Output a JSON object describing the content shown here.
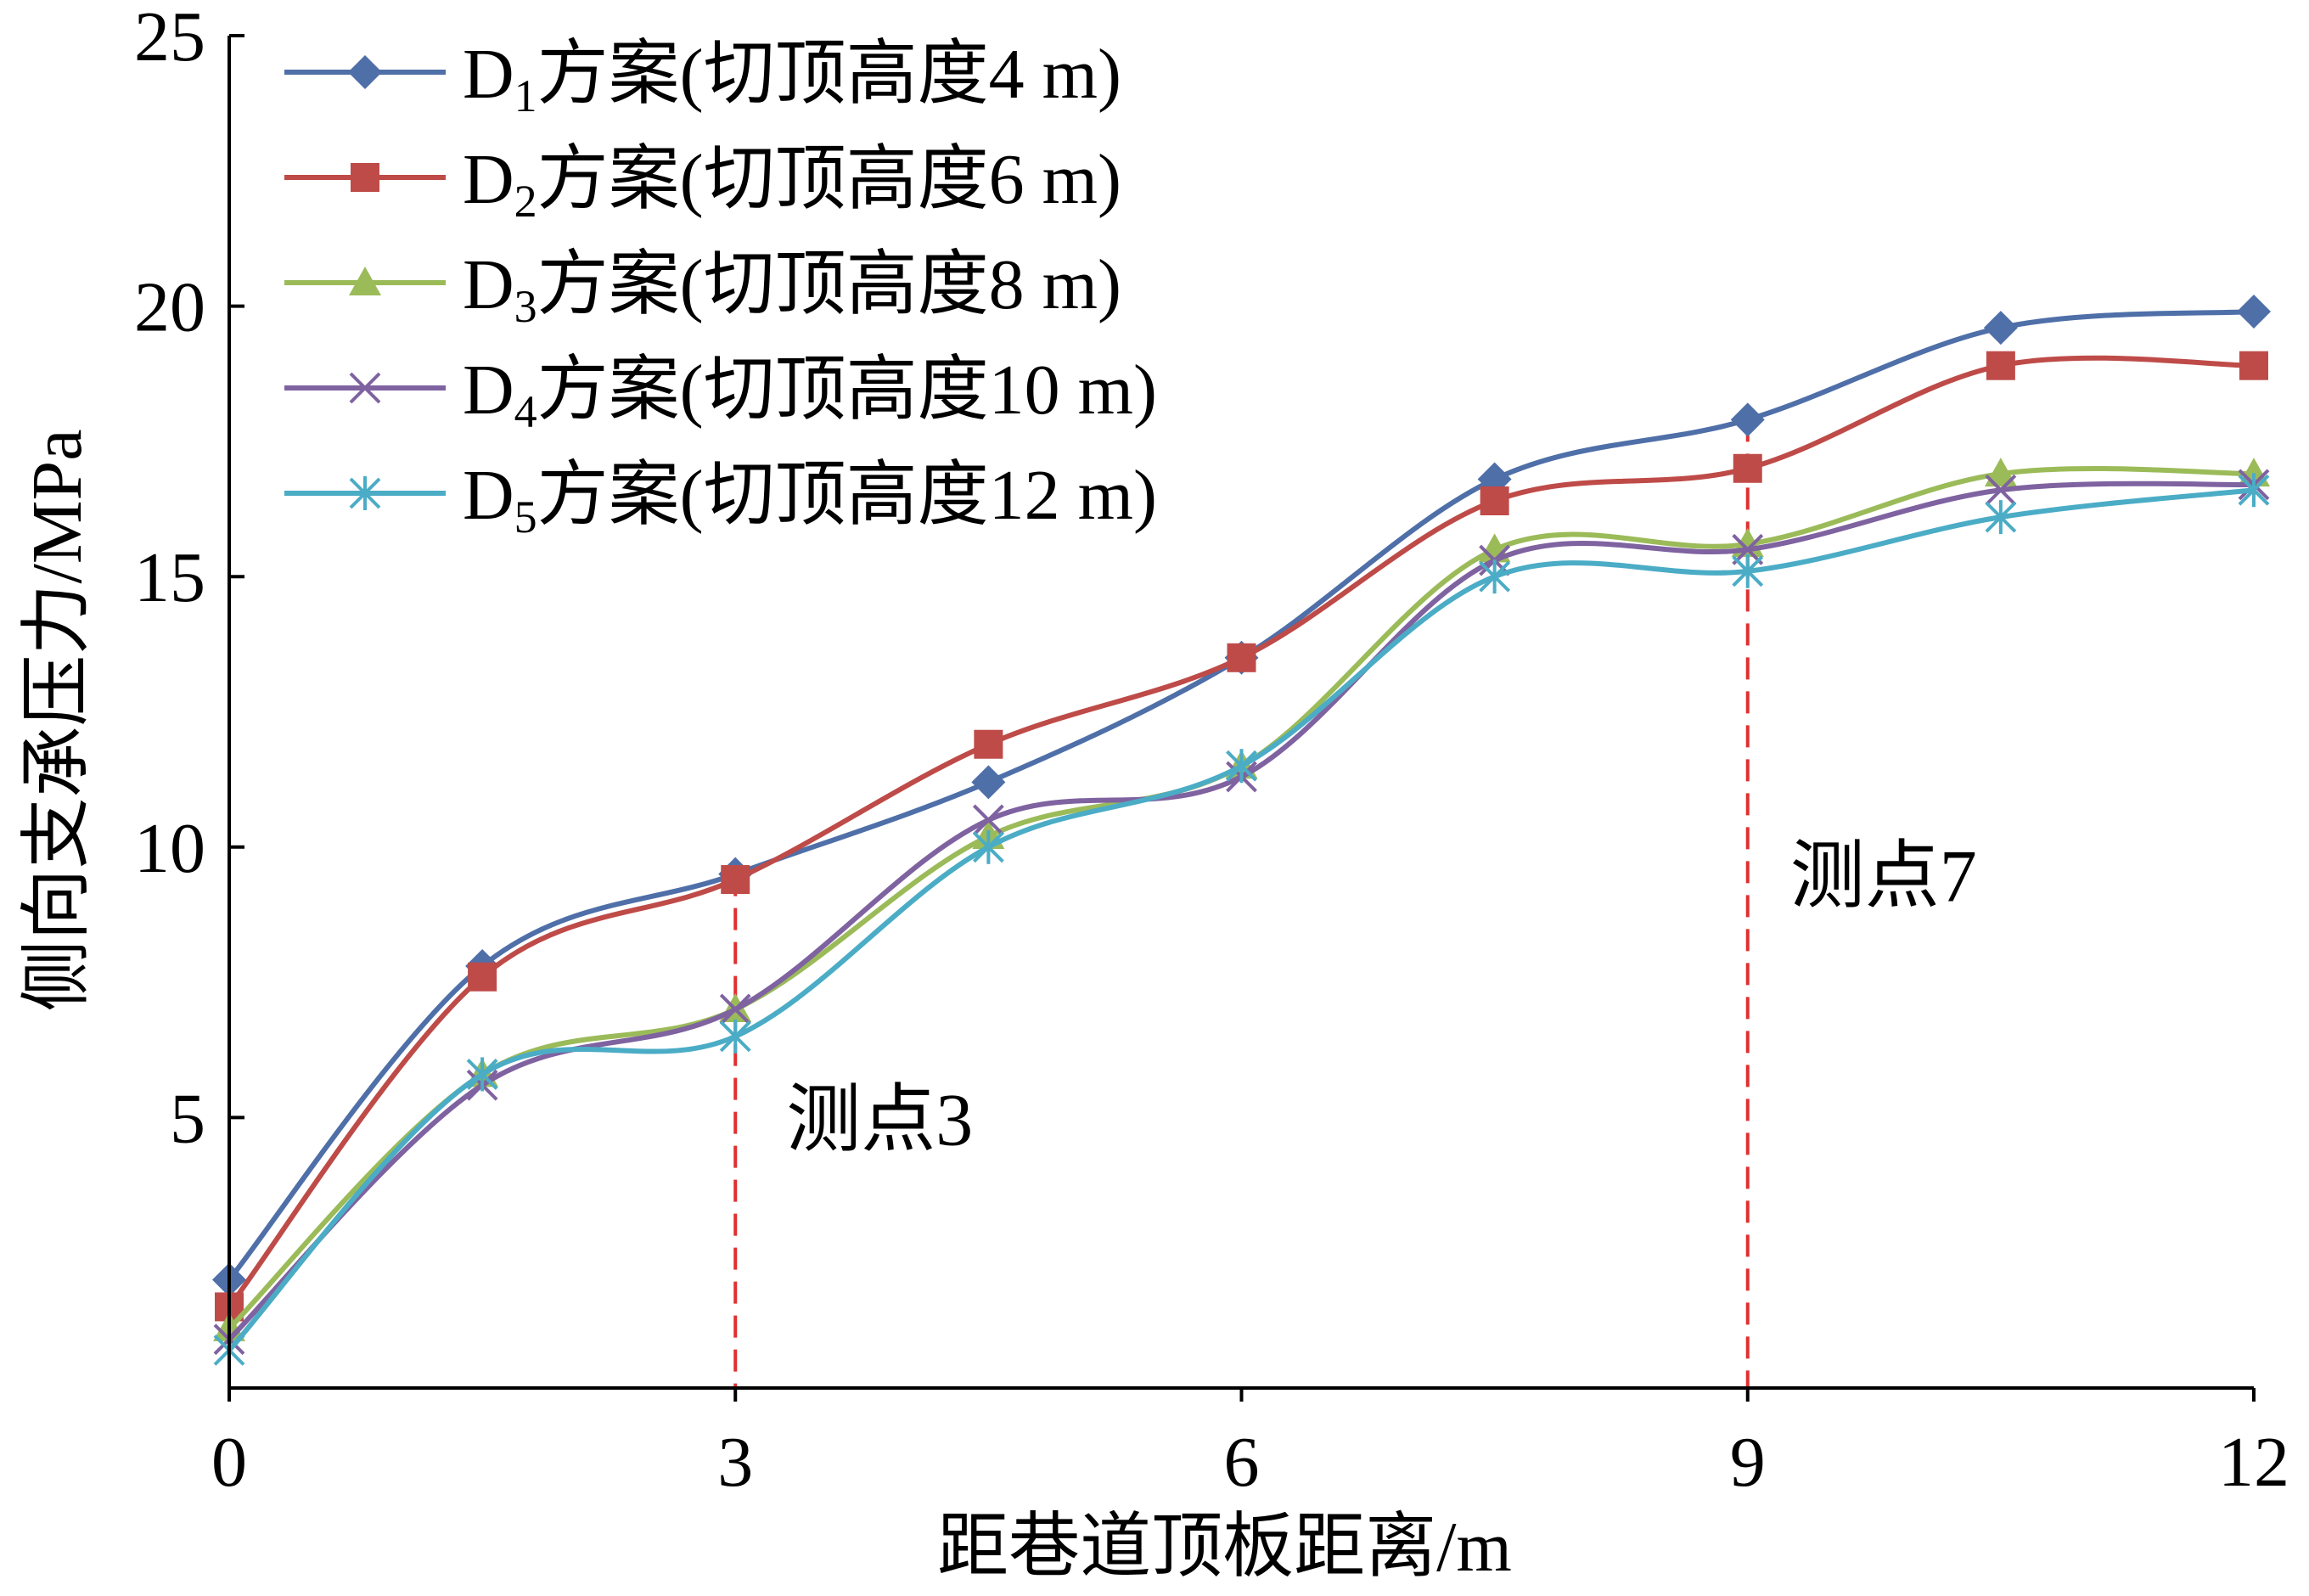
{
  "chart_data": {
    "type": "line",
    "title": "",
    "xlabel": "距巷道顶板距离/m",
    "ylabel": "侧向支承压力/MPa",
    "xlim": [
      0,
      12
    ],
    "ylim": [
      0,
      25
    ],
    "xticks": [
      0,
      3,
      6,
      9,
      12
    ],
    "yticks": [
      5,
      10,
      15,
      20,
      25
    ],
    "xtick_labels": [
      "0",
      "3",
      "6",
      "9",
      "12"
    ],
    "ytick_labels": [
      "5",
      "10",
      "15",
      "20",
      "25"
    ],
    "grid": false,
    "legend_position": "top-left",
    "x": [
      0,
      1.5,
      3,
      4.5,
      6,
      7.5,
      9,
      10.5,
      12
    ],
    "series": [
      {
        "name_main": "D",
        "name_sub": "1",
        "name_rest": "方案(切顶高度4 m)",
        "color": "#4F6FA8",
        "marker": "diamond",
        "values": [
          2.0,
          7.8,
          9.5,
          11.2,
          13.5,
          16.8,
          17.9,
          19.6,
          19.9
        ]
      },
      {
        "name_main": "D",
        "name_sub": "2",
        "name_rest": "方案(切顶高度6 m)",
        "color": "#BE4B48",
        "marker": "square",
        "values": [
          1.5,
          7.6,
          9.4,
          11.9,
          13.5,
          16.4,
          17.0,
          18.9,
          18.9
        ]
      },
      {
        "name_main": "D",
        "name_sub": "3",
        "name_rest": "方案(切顶高度8 m)",
        "color": "#9BBB59",
        "marker": "triangle",
        "values": [
          1.1,
          5.8,
          7.0,
          10.2,
          11.5,
          15.5,
          15.6,
          16.9,
          16.9
        ]
      },
      {
        "name_main": "D",
        "name_sub": "4",
        "name_rest": "方案(切顶高度10 m)",
        "color": "#7F62A0",
        "marker": "x",
        "values": [
          0.9,
          5.6,
          7.0,
          10.5,
          11.3,
          15.3,
          15.5,
          16.6,
          16.7
        ]
      },
      {
        "name_main": "D",
        "name_sub": "5",
        "name_rest": "方案(切顶高度12 m)",
        "color": "#4BACC6",
        "marker": "asterisk",
        "values": [
          0.7,
          5.8,
          6.5,
          10.0,
          11.5,
          15.0,
          15.1,
          16.1,
          16.6
        ]
      }
    ],
    "annotations": [
      {
        "label": "测点3",
        "x": 3,
        "line_top_y": 9.5,
        "color": "#E03030"
      },
      {
        "label": "测点7",
        "x": 9,
        "line_top_y": 17.9,
        "color": "#E03030"
      }
    ]
  }
}
